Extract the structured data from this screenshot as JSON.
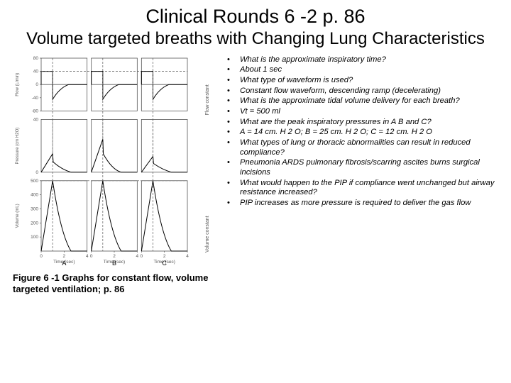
{
  "heading": {
    "line1": "Clinical Rounds 6 -2 p. 86",
    "line2": "Volume targeted breaths with Changing Lung Characteristics"
  },
  "bullets": [
    "What is the approximate inspiratory time?",
    "About 1 sec",
    "What type of waveform is used?",
    "Constant flow waveform, descending ramp (decelerating)",
    "What is the approximate tidal volume delivery for each breath?",
    "Vt = 500 ml",
    "What are the peak inspiratory pressures in A B and C?",
    "A = 14 cm. H 2 O; B = 25 cm. H 2 O; C = 12 cm. H 2 O",
    "What types of lung or thoracic abnormalities can result in reduced compliance?",
    "Pneumonia ARDS pulmonary fibrosis/scarring ascites burns surgical incisions",
    "What would happen to the PIP if compliance went unchanged but airway resistance increased?",
    "PIP increases as more pressure is required to deliver the gas flow"
  ],
  "caption": "Figure 6 -1 Graphs for constant flow, volume targeted ventilation; p. 86",
  "figure": {
    "panels": [
      "A",
      "B",
      "C"
    ],
    "time_ticks": [
      0,
      2,
      4
    ],
    "flow": {
      "ylabel": "Flow (L/min)",
      "ticks": [
        "80",
        "40",
        "0",
        "-40",
        "-80"
      ],
      "right": "Flow constant",
      "range": [
        -80,
        80
      ]
    },
    "press": {
      "ylabel": "Pressure (cm H2O)",
      "ticks": [
        "40",
        "0"
      ],
      "peaks": [
        14,
        25,
        12
      ]
    },
    "vol": {
      "ylabel": "Volume (mL)",
      "ticks": [
        "500",
        "400",
        "300",
        "200",
        "100"
      ],
      "right": "Volume constant",
      "peak": 500
    },
    "xlabel": "Time (sec)"
  }
}
